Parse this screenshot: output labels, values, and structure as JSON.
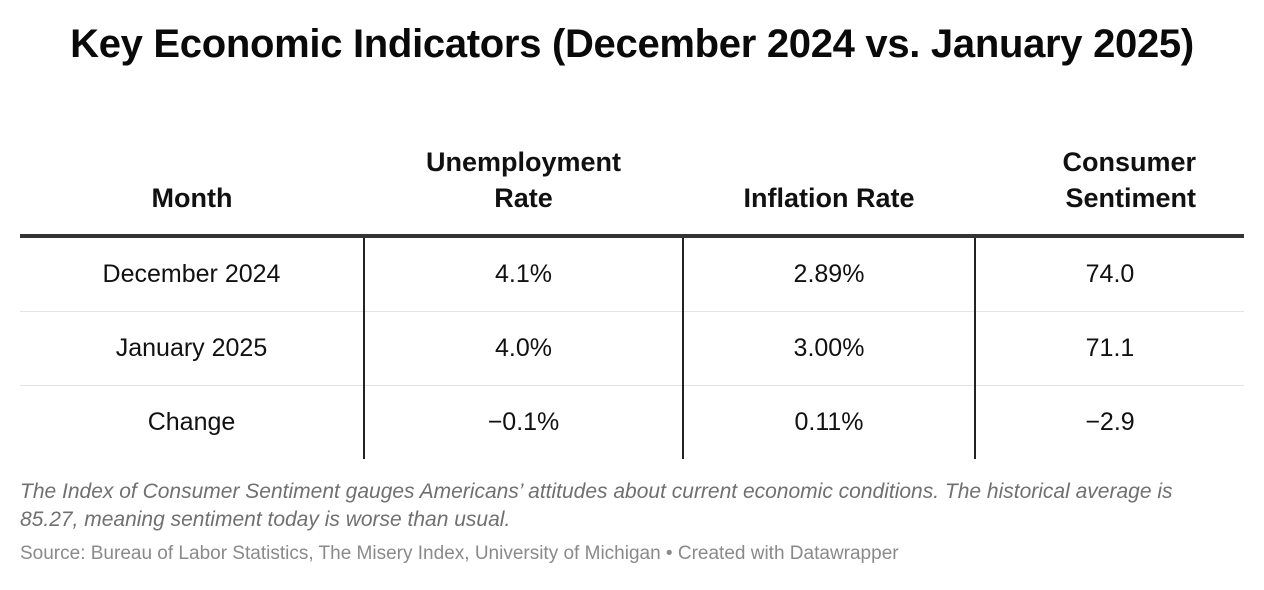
{
  "title": "Key Economic Indicators (December 2024 vs. January 2025)",
  "table": {
    "columns": [
      "Month",
      "Unemployment Rate",
      "Inflation Rate",
      "Consumer Sentiment"
    ],
    "header_lines": {
      "month": "Month",
      "unemployment_1": "Unemployment",
      "unemployment_2": "Rate",
      "inflation": "Inflation Rate",
      "sentiment_1": "Consumer",
      "sentiment_2": "Sentiment"
    },
    "rows": [
      [
        "December 2024",
        "4.1%",
        "2.89%",
        "74.0"
      ],
      [
        "January 2025",
        "4.0%",
        "3.00%",
        "71.1"
      ],
      [
        "Change",
        "−0.1%",
        "0.11%",
        "−2.9"
      ]
    ]
  },
  "notes": "The Index of Consumer Sentiment gauges Americans’ attitudes about current economic conditions. The historical average is 85.27, meaning sentiment today is worse than usual.",
  "source": "Source: Bureau of Labor Statistics, The Misery Index, University of Michigan • Created with Datawrapper"
}
